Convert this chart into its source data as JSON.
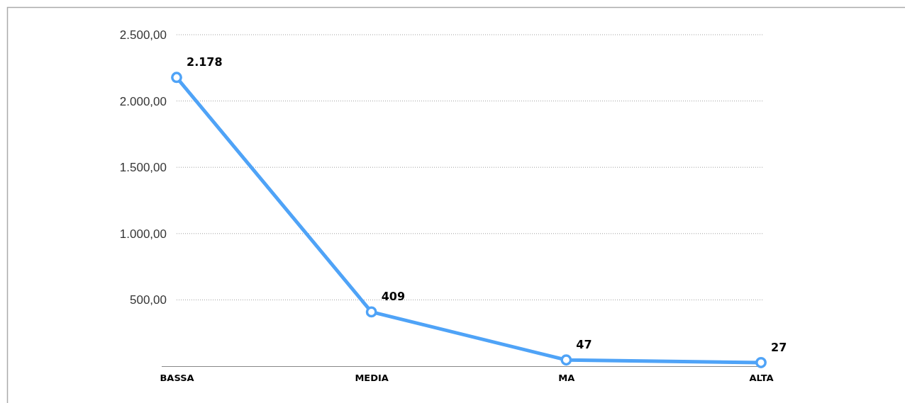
{
  "chart_data": {
    "type": "line",
    "categories": [
      "BASSA",
      "MEDIA",
      "MA",
      "ALTA"
    ],
    "series": [
      {
        "color": "#4fa3f7",
        "values": [
          2178,
          409,
          47,
          27
        ],
        "value_labels": [
          "2.178",
          "409",
          "47",
          "27"
        ]
      }
    ],
    "ylim": [
      0,
      2500
    ],
    "yticks": [
      {
        "value": 0,
        "label": null
      },
      {
        "value": 500,
        "label": "500,00"
      },
      {
        "value": 1000,
        "label": "1.000,00"
      },
      {
        "value": 1500,
        "label": "1.500,00"
      },
      {
        "value": 2000,
        "label": "2.000,00"
      },
      {
        "value": 2500,
        "label": "2.500,00"
      }
    ],
    "grid": "y",
    "marker": "circle",
    "line_style": "solid"
  }
}
